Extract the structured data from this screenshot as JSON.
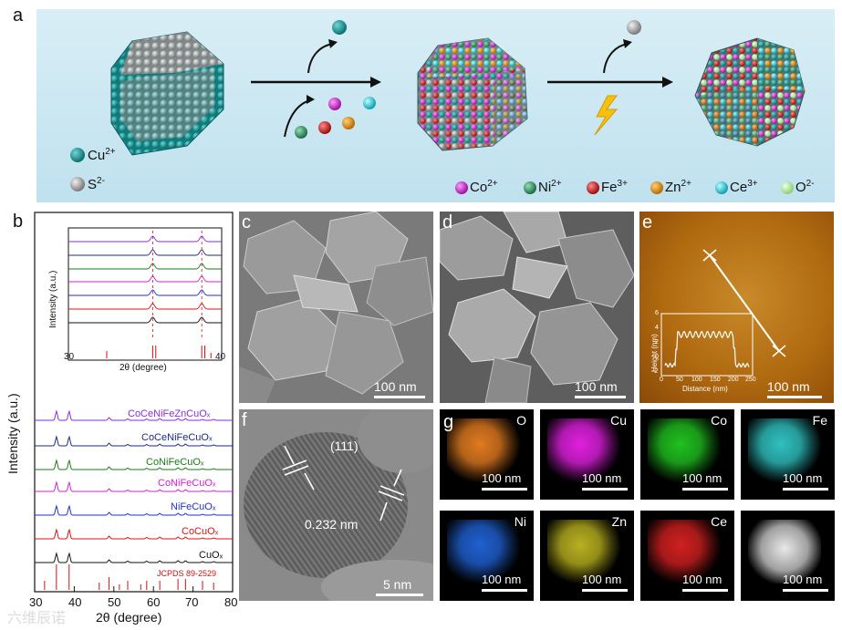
{
  "panels": {
    "a": "a",
    "b": "b",
    "c": "c",
    "d": "d",
    "e": "e",
    "f": "f",
    "g": "g"
  },
  "panel_a": {
    "legend_left": [
      {
        "ion": "Cu",
        "charge": "2+",
        "color": "#0f8a8a"
      },
      {
        "ion": "S",
        "charge": "2-",
        "color": "#9a9a9a"
      }
    ],
    "legend_right": [
      {
        "ion": "Co",
        "charge": "2+",
        "color": "#e020e0"
      },
      {
        "ion": "Ni",
        "charge": "2+",
        "color": "#2f9a6a"
      },
      {
        "ion": "Fe",
        "charge": "3+",
        "color": "#e51e1e"
      },
      {
        "ion": "Zn",
        "charge": "2+",
        "color": "#f09a10"
      },
      {
        "ion": "Ce",
        "charge": "3+",
        "color": "#30e0ee"
      },
      {
        "ion": "O",
        "charge": "2-",
        "color": "#b8f090"
      }
    ],
    "lightning_icon": "lightning-bolt"
  },
  "panel_b": {
    "ylabel": "Intensity (a.u.)",
    "xlabel": "2θ (degree)",
    "x_ticks": [
      "30",
      "40",
      "50",
      "60",
      "70",
      "80"
    ],
    "series_labels": [
      {
        "name": "CoCeNiFeZnCuOₓ",
        "color": "#8a2be2"
      },
      {
        "name": "CoCeNiFeCuOₓ",
        "color": "#1b2a8a"
      },
      {
        "name": "CoNiFeCuOₓ",
        "color": "#1a7a1a"
      },
      {
        "name": "CoNiFeCuOₓ",
        "color": "#d41fd4"
      },
      {
        "name": "NiFeCuOₓ",
        "color": "#1f2fd4"
      },
      {
        "name": "CoCuOₓ",
        "color": "#e01010"
      },
      {
        "name": "CuOₓ",
        "color": "#111111"
      }
    ],
    "reference_label": "JCPDS 89-2529",
    "inset": {
      "ylabel": "Intensity (a.u.)",
      "xlabel": "2θ (degree)",
      "x_ticks": [
        "30",
        "40"
      ]
    }
  },
  "panel_c": {
    "scale": "100 nm"
  },
  "panel_d": {
    "scale": "100 nm"
  },
  "panel_e": {
    "scale": "100 nm",
    "inset": {
      "ylabel": "Height (nm)",
      "xlabel": "Distance (nm)",
      "y_ticks": [
        "6",
        "4",
        "2",
        "0",
        "-2"
      ],
      "x_ticks": [
        "0",
        "50",
        "100",
        "150",
        "200",
        "250"
      ]
    }
  },
  "panel_f": {
    "plane": "(111)",
    "d_spacing": "0.232 nm",
    "scale": "5 nm"
  },
  "panel_g": {
    "maps": [
      {
        "element": "O",
        "scale": "100 nm",
        "color": "#e07a20"
      },
      {
        "element": "Cu",
        "scale": "100 nm",
        "color": "#e020e0"
      },
      {
        "element": "Co",
        "scale": "100 nm",
        "color": "#20c020"
      },
      {
        "element": "Fe",
        "scale": "100 nm",
        "color": "#30c0c0"
      },
      {
        "element": "Ni",
        "scale": "100 nm",
        "color": "#2060d0"
      },
      {
        "element": "Zn",
        "scale": "100 nm",
        "color": "#b8b020"
      },
      {
        "element": "Ce",
        "scale": "100 nm",
        "color": "#d02020"
      },
      {
        "element": "",
        "scale": "100 nm",
        "color": "#d0d0d0"
      }
    ]
  },
  "watermark": "六维辰诺"
}
